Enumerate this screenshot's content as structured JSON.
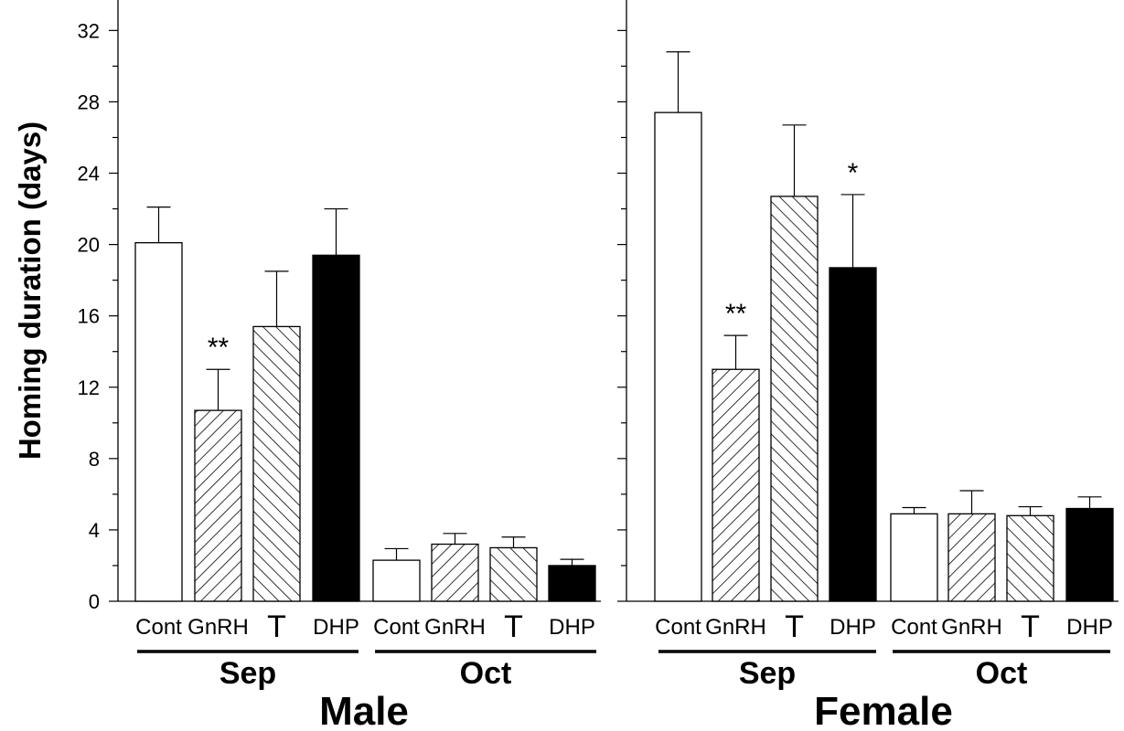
{
  "chart_data": {
    "type": "bar",
    "ylabel": "Homing duration (days)",
    "ylim": [
      0,
      33
    ],
    "yticks": [
      0,
      4,
      8,
      12,
      16,
      20,
      24,
      28,
      32
    ],
    "categories": [
      "Cont",
      "GnRH",
      "T",
      "DHP"
    ],
    "category_styles": {
      "Cont": {
        "fill": "#ffffff",
        "pattern": "none"
      },
      "GnRH": {
        "fill": "#ffffff",
        "pattern": "diagonal-forward"
      },
      "T": {
        "fill": "#ffffff",
        "pattern": "diagonal-backward"
      },
      "DHP": {
        "fill": "#000000",
        "pattern": "solid"
      }
    },
    "panels": [
      {
        "title": "Male",
        "groups": [
          {
            "label": "Sep",
            "bars": [
              {
                "category": "Cont",
                "value": 20.1,
                "error": 2.0,
                "sig": ""
              },
              {
                "category": "GnRH",
                "value": 10.7,
                "error": 2.3,
                "sig": "**"
              },
              {
                "category": "T",
                "value": 15.4,
                "error": 3.1,
                "sig": ""
              },
              {
                "category": "DHP",
                "value": 19.4,
                "error": 2.6,
                "sig": ""
              }
            ]
          },
          {
            "label": "Oct",
            "bars": [
              {
                "category": "Cont",
                "value": 2.3,
                "error": 0.65,
                "sig": ""
              },
              {
                "category": "GnRH",
                "value": 3.2,
                "error": 0.6,
                "sig": ""
              },
              {
                "category": "T",
                "value": 3.0,
                "error": 0.6,
                "sig": ""
              },
              {
                "category": "DHP",
                "value": 2.0,
                "error": 0.35,
                "sig": ""
              }
            ]
          }
        ]
      },
      {
        "title": "Female",
        "groups": [
          {
            "label": "Sep",
            "bars": [
              {
                "category": "Cont",
                "value": 27.4,
                "error": 3.4,
                "sig": ""
              },
              {
                "category": "GnRH",
                "value": 13.0,
                "error": 1.9,
                "sig": "**"
              },
              {
                "category": "T",
                "value": 22.7,
                "error": 4.0,
                "sig": ""
              },
              {
                "category": "DHP",
                "value": 18.7,
                "error": 4.1,
                "sig": "*"
              }
            ]
          },
          {
            "label": "Oct",
            "bars": [
              {
                "category": "Cont",
                "value": 4.9,
                "error": 0.35,
                "sig": ""
              },
              {
                "category": "GnRH",
                "value": 4.9,
                "error": 1.3,
                "sig": ""
              },
              {
                "category": "T",
                "value": 4.8,
                "error": 0.5,
                "sig": ""
              },
              {
                "category": "DHP",
                "value": 5.2,
                "error": 0.65,
                "sig": ""
              }
            ]
          }
        ]
      }
    ]
  }
}
